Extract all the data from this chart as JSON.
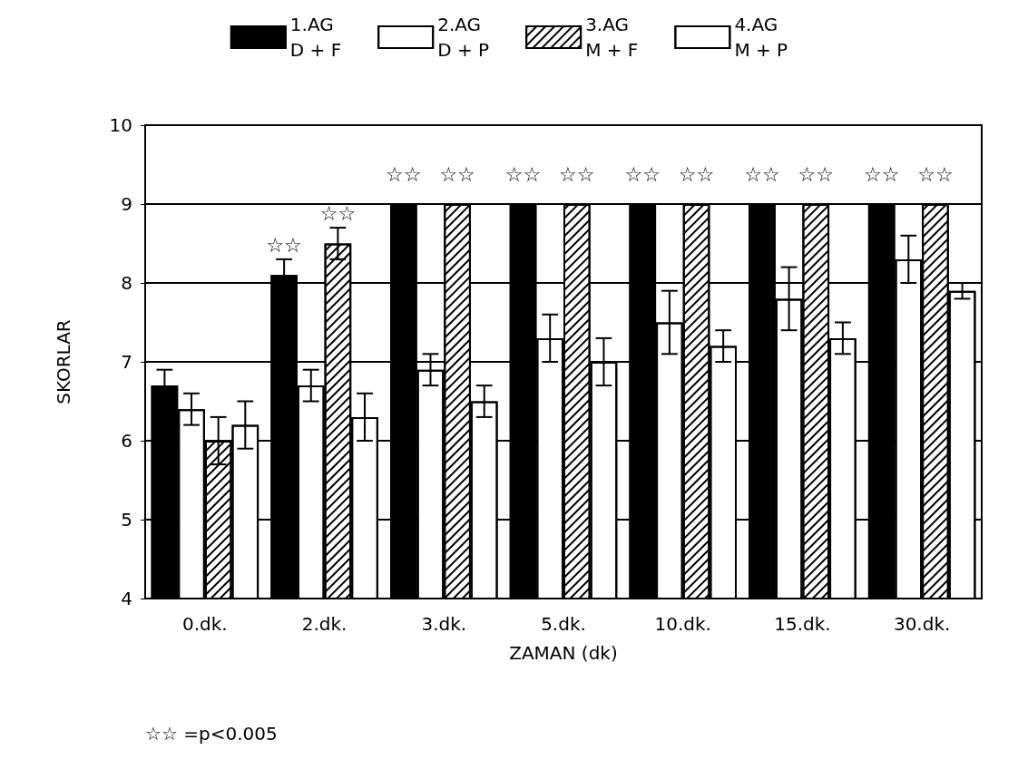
{
  "chart_data": {
    "type": "bar",
    "xlabel": "ZAMAN (dk)",
    "ylabel": "SKORLAR",
    "categories": [
      "0.dk.",
      "2.dk.",
      "3.dk.",
      "5.dk.",
      "10.dk.",
      "15.dk.",
      "30.dk."
    ],
    "series": [
      {
        "name": "1.AG\nD + F",
        "color": "#000000",
        "values": [
          6.7,
          8.1,
          9,
          9,
          9,
          9,
          9
        ],
        "errors": [
          0.2,
          0.2,
          null,
          null,
          null,
          null,
          null
        ]
      },
      {
        "name": "2.AG\nD + P",
        "color": "#ffffff",
        "values": [
          6.4,
          6.7,
          6.9,
          7.3,
          7.5,
          7.8,
          8.3
        ],
        "errors": [
          0.2,
          0.2,
          0.2,
          0.3,
          0.4,
          0.4,
          0.3
        ]
      },
      {
        "name": "3.AG\nM + F",
        "color": "#ffffff",
        "values": [
          6.0,
          8.5,
          9,
          9,
          9,
          9,
          9
        ],
        "errors": [
          0.3,
          0.2,
          null,
          null,
          null,
          null,
          null
        ]
      },
      {
        "name": "4.AG\nM + P",
        "color": "#ffffff",
        "values": [
          6.2,
          6.3,
          6.5,
          7.0,
          7.2,
          7.3,
          7.9
        ],
        "errors": [
          0.3,
          0.3,
          0.2,
          0.3,
          0.2,
          0.2,
          0.1
        ]
      }
    ],
    "ylim": [
      4,
      10
    ],
    "yticks": [
      4,
      5,
      6,
      7,
      8,
      9,
      10
    ],
    "grid": "y",
    "legend": "top",
    "annotations": [
      {
        "text": "☆☆",
        "x": "2.dk.",
        "y": 8.1
      },
      {
        "text": "☆☆",
        "x": "2.dk.",
        "y": 8.5
      },
      {
        "text": "☆☆",
        "x": "3.dk.",
        "y": 9
      },
      {
        "text": "☆☆",
        "x": "3.dk.",
        "y": 9
      },
      {
        "text": "☆☆",
        "x": "5.dk.",
        "y": 9
      },
      {
        "text": "☆☆",
        "x": "5.dk.",
        "y": 9
      },
      {
        "text": "☆☆",
        "x": "10.dk.",
        "y": 9
      },
      {
        "text": "☆☆",
        "x": "10.dk.",
        "y": 9
      },
      {
        "text": "☆☆",
        "x": "15.dk.",
        "y": 9
      },
      {
        "text": "☆☆",
        "x": "15.dk.",
        "y": 9
      },
      {
        "text": "☆☆",
        "x": "30.dk.",
        "y": 9
      },
      {
        "text": "☆☆",
        "x": "30.dk.",
        "y": 9
      },
      "☆☆ =p<0.005"
    ]
  }
}
